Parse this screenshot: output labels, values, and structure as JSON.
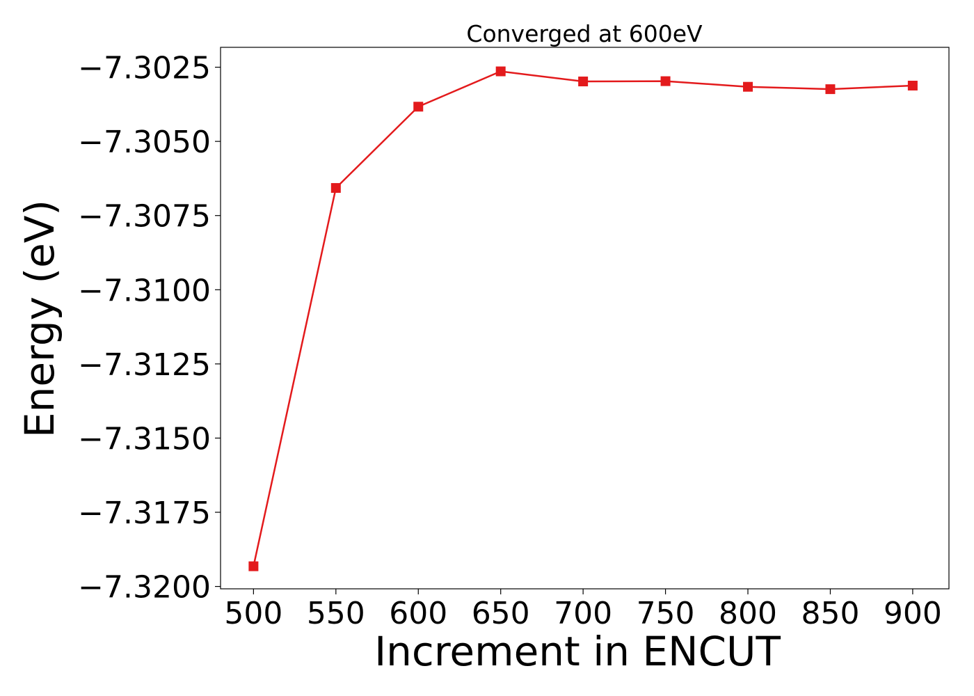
{
  "chart_data": {
    "type": "line",
    "title": "Converged at 600eV",
    "xlabel": "Increment in ENCUT",
    "ylabel": "Energy (eV)",
    "x": [
      500,
      550,
      600,
      650,
      700,
      750,
      800,
      850,
      900
    ],
    "series": [
      {
        "values": [
          -7.31932,
          -7.30657,
          -7.30383,
          -7.30264,
          -7.30298,
          -7.30297,
          -7.30316,
          -7.30324,
          -7.30312
        ],
        "color": "#e31a1c",
        "marker": "square"
      }
    ],
    "xlim": [
      480,
      922
    ],
    "ylim": [
      -7.32008,
      -7.30183
    ],
    "xticks": [
      500,
      550,
      600,
      650,
      700,
      750,
      800,
      850,
      900
    ],
    "xtick_labels": [
      "500",
      "550",
      "600",
      "650",
      "700",
      "750",
      "800",
      "850",
      "900"
    ],
    "yticks": [
      -7.3025,
      -7.305,
      -7.3075,
      -7.31,
      -7.3125,
      -7.315,
      -7.3175,
      -7.32
    ],
    "ytick_labels": [
      "−7.3025",
      "−7.3050",
      "−7.3075",
      "−7.3100",
      "−7.3125",
      "−7.3150",
      "−7.3175",
      "−7.3200"
    ],
    "grid": false,
    "legend": "none"
  }
}
